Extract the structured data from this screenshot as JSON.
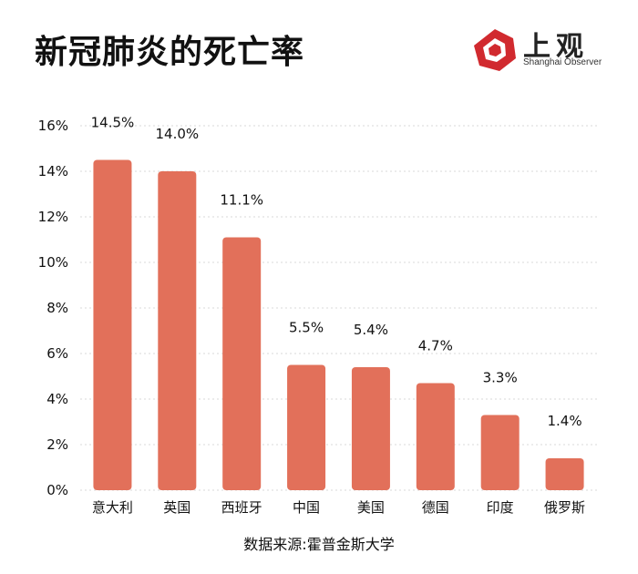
{
  "header": {
    "title": "新冠肺炎的死亡率"
  },
  "logo": {
    "main": "上观",
    "sub": "Shanghai Observer",
    "color": "#d12a2f"
  },
  "footer": {
    "source": "数据来源:霍普金斯大学"
  },
  "chart_data": {
    "type": "bar",
    "title": "新冠肺炎的死亡率",
    "categories": [
      "意大利",
      "英国",
      "西班牙",
      "中国",
      "美国",
      "德国",
      "印度",
      "俄罗斯"
    ],
    "values": [
      14.5,
      14.0,
      11.1,
      5.5,
      5.4,
      4.7,
      3.3,
      1.4
    ],
    "data_labels": [
      "14.5%",
      "14.0%",
      "11.1%",
      "5.5%",
      "5.4%",
      "4.7%",
      "3.3%",
      "1.4%"
    ],
    "y_ticks": [
      "0%",
      "2%",
      "4%",
      "6%",
      "8%",
      "10%",
      "12%",
      "14%",
      "16%"
    ],
    "ylim": [
      0,
      16
    ],
    "xlabel": "",
    "ylabel": "",
    "grid": true,
    "bar_color": "#e2705a",
    "source": "数据来源:霍普金斯大学"
  }
}
